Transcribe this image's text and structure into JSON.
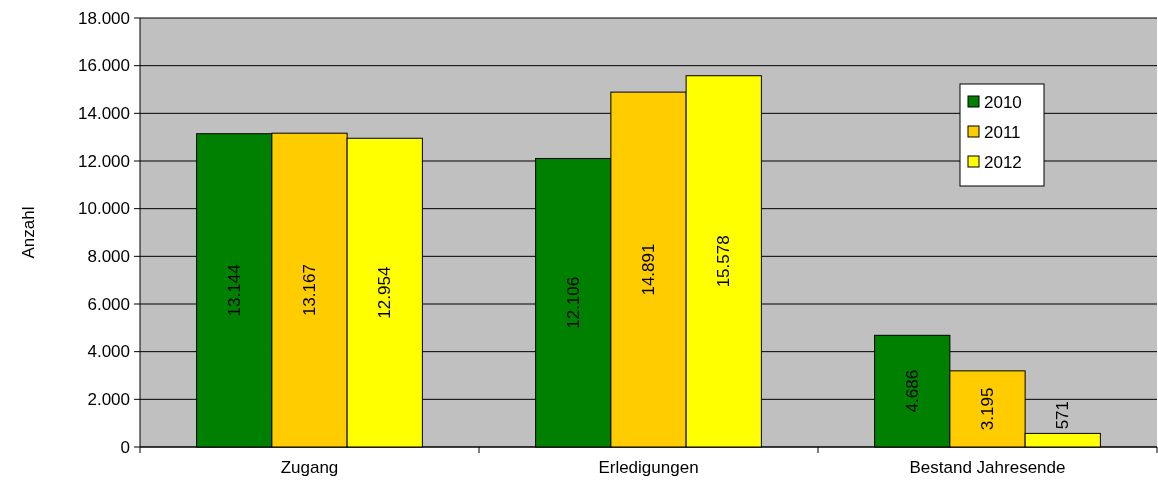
{
  "chart_data": {
    "type": "bar",
    "ylabel": "Anzahl",
    "categories": [
      "Zugang",
      "Erledigungen",
      "Bestand Jahresende"
    ],
    "series": [
      {
        "name": "2010",
        "color": "#008000",
        "values": [
          13144,
          12106,
          4686
        ],
        "value_labels": [
          "13.144",
          "12.106",
          "4.686"
        ]
      },
      {
        "name": "2011",
        "color": "#ffcc00",
        "values": [
          13167,
          14891,
          3195
        ],
        "value_labels": [
          "13.167",
          "14.891",
          "3.195"
        ]
      },
      {
        "name": "2012",
        "color": "#ffff00",
        "values": [
          12954,
          15578,
          571
        ],
        "value_labels": [
          "12.954",
          "15.578",
          "571"
        ]
      }
    ],
    "ylim": [
      0,
      18000
    ],
    "yticks": [
      0,
      {
        "value": 2000,
        "label": "2.000"
      },
      {
        "value": 4000,
        "label": "4.000"
      },
      {
        "value": 6000,
        "label": "6.000"
      },
      {
        "value": 8000,
        "label": "8.000"
      },
      {
        "value": 10000,
        "label": "10.000"
      },
      {
        "value": 12000,
        "label": "12.000"
      },
      {
        "value": 14000,
        "label": "14.000"
      },
      {
        "value": 16000,
        "label": "16.000"
      },
      {
        "value": 18000,
        "label": "18.000"
      }
    ],
    "grid": "y",
    "legend": "top right"
  }
}
